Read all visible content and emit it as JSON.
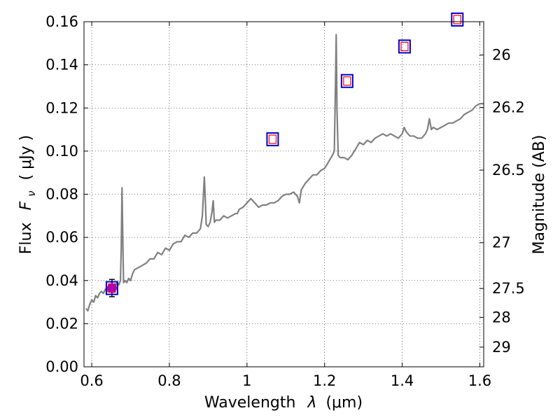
{
  "chart_data": {
    "type": "line",
    "xlabel_text": "Wavelength",
    "xlabel_symbol": "λ",
    "xlabel_unit": "(μm)",
    "ylabel_text": "Flux",
    "ylabel_symbol": "F",
    "ylabel_sub": "ν",
    "ylabel_unit": "( μJy )",
    "y2label": "Magnitude (AB)",
    "xlim": [
      0.58,
      1.61
    ],
    "ylim": [
      0.0,
      0.16
    ],
    "grid": true,
    "x_ticks": [
      {
        "value": 0.6,
        "label": "0.6"
      },
      {
        "value": 0.8,
        "label": "0.8"
      },
      {
        "value": 1.0,
        "label": "1"
      },
      {
        "value": 1.2,
        "label": "1.2"
      },
      {
        "value": 1.4,
        "label": "1.4"
      },
      {
        "value": 1.6,
        "label": "1.6"
      }
    ],
    "y_ticks": [
      {
        "value": 0.0,
        "label": "0.00"
      },
      {
        "value": 0.02,
        "label": "0.02"
      },
      {
        "value": 0.04,
        "label": "0.04"
      },
      {
        "value": 0.06,
        "label": "0.06"
      },
      {
        "value": 0.08,
        "label": "0.08"
      },
      {
        "value": 0.1,
        "label": "0.10"
      },
      {
        "value": 0.12,
        "label": "0.12"
      },
      {
        "value": 0.14,
        "label": "0.14"
      },
      {
        "value": 0.16,
        "label": "0.16"
      }
    ],
    "y2_ticks": [
      {
        "value": 26.0,
        "label": "26"
      },
      {
        "value": 26.2,
        "label": "26.2"
      },
      {
        "value": 26.5,
        "label": "26.5"
      },
      {
        "value": 27.0,
        "label": "27"
      },
      {
        "value": 27.5,
        "label": "27.5"
      },
      {
        "value": 28.0,
        "label": "28"
      },
      {
        "value": 29.0,
        "label": "29"
      }
    ],
    "spectrum": {
      "color": "#808080",
      "x": [
        0.585,
        0.59,
        0.595,
        0.6,
        0.605,
        0.61,
        0.615,
        0.62,
        0.625,
        0.63,
        0.635,
        0.64,
        0.645,
        0.65,
        0.655,
        0.66,
        0.665,
        0.67,
        0.674,
        0.676,
        0.678,
        0.68,
        0.682,
        0.685,
        0.69,
        0.695,
        0.7,
        0.705,
        0.71,
        0.72,
        0.73,
        0.74,
        0.75,
        0.76,
        0.77,
        0.78,
        0.79,
        0.8,
        0.81,
        0.82,
        0.83,
        0.84,
        0.85,
        0.86,
        0.87,
        0.88,
        0.885,
        0.89,
        0.892,
        0.895,
        0.9,
        0.905,
        0.91,
        0.913,
        0.916,
        0.92,
        0.93,
        0.94,
        0.95,
        0.96,
        0.97,
        0.975,
        0.98,
        0.99,
        1.0,
        1.01,
        1.02,
        1.03,
        1.04,
        1.05,
        1.06,
        1.07,
        1.08,
        1.09,
        1.1,
        1.11,
        1.12,
        1.13,
        1.135,
        1.14,
        1.15,
        1.16,
        1.17,
        1.18,
        1.19,
        1.2,
        1.21,
        1.22,
        1.225,
        1.228,
        1.23,
        1.232,
        1.235,
        1.24,
        1.25,
        1.26,
        1.27,
        1.28,
        1.29,
        1.3,
        1.31,
        1.32,
        1.33,
        1.34,
        1.35,
        1.36,
        1.37,
        1.38,
        1.39,
        1.4,
        1.405,
        1.41,
        1.42,
        1.43,
        1.44,
        1.45,
        1.46,
        1.465,
        1.47,
        1.475,
        1.48,
        1.49,
        1.5,
        1.51,
        1.52,
        1.53,
        1.54,
        1.55,
        1.56,
        1.57,
        1.58,
        1.59,
        1.6,
        1.61
      ],
      "y": [
        0.027,
        0.026,
        0.029,
        0.031,
        0.03,
        0.033,
        0.032,
        0.034,
        0.035,
        0.034,
        0.036,
        0.035,
        0.037,
        0.036,
        0.038,
        0.037,
        0.039,
        0.038,
        0.04,
        0.055,
        0.083,
        0.06,
        0.039,
        0.04,
        0.039,
        0.041,
        0.04,
        0.043,
        0.045,
        0.046,
        0.047,
        0.048,
        0.05,
        0.05,
        0.053,
        0.052,
        0.055,
        0.054,
        0.057,
        0.058,
        0.058,
        0.061,
        0.06,
        0.062,
        0.062,
        0.064,
        0.07,
        0.088,
        0.08,
        0.066,
        0.065,
        0.067,
        0.072,
        0.077,
        0.067,
        0.068,
        0.068,
        0.07,
        0.069,
        0.07,
        0.071,
        0.071,
        0.073,
        0.074,
        0.076,
        0.078,
        0.076,
        0.074,
        0.075,
        0.075,
        0.076,
        0.076,
        0.077,
        0.079,
        0.08,
        0.08,
        0.081,
        0.079,
        0.076,
        0.082,
        0.085,
        0.087,
        0.089,
        0.089,
        0.091,
        0.092,
        0.095,
        0.098,
        0.1,
        0.13,
        0.154,
        0.12,
        0.098,
        0.097,
        0.097,
        0.096,
        0.098,
        0.101,
        0.104,
        0.103,
        0.105,
        0.104,
        0.106,
        0.107,
        0.108,
        0.107,
        0.108,
        0.107,
        0.106,
        0.108,
        0.111,
        0.109,
        0.107,
        0.107,
        0.106,
        0.106,
        0.108,
        0.11,
        0.115,
        0.11,
        0.111,
        0.11,
        0.111,
        0.112,
        0.113,
        0.113,
        0.114,
        0.115,
        0.117,
        0.118,
        0.119,
        0.121,
        0.122,
        0.122
      ]
    },
    "photometry_boxes": [
      {
        "x": 0.652,
        "y": 0.0365
      },
      {
        "x": 1.066,
        "y": 0.1055
      },
      {
        "x": 1.258,
        "y": 0.1325
      },
      {
        "x": 1.406,
        "y": 0.1485
      },
      {
        "x": 1.542,
        "y": 0.161
      }
    ],
    "detection_point": {
      "x": 0.652,
      "y": 0.0365,
      "yerr": 0.004,
      "color": "#a000c8"
    },
    "colors": {
      "box_outer": "#0000cc",
      "box_inner": "#ff0000",
      "grid": "#000000",
      "axes": "#000000"
    }
  }
}
